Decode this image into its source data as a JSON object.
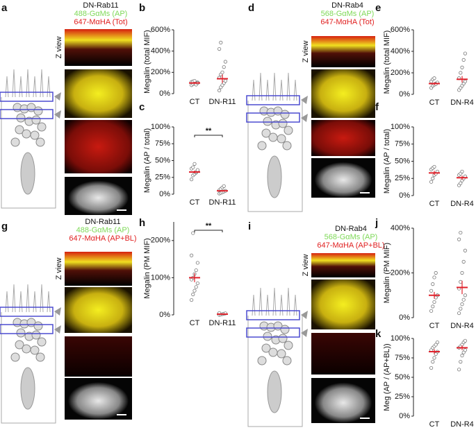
{
  "image_panels": [
    {
      "letter": "a",
      "title": "DN-Rab11",
      "label1": "488-GαMs (AP)",
      "label2": "647-MαHA (Tot)",
      "zview": "Z view"
    },
    {
      "letter": "d",
      "title": "DN-Rab4",
      "label1": "568-GαMs (AP)",
      "label2": "647-MαHA (Tot)",
      "zview": "Z view"
    },
    {
      "letter": "g",
      "title": "DN-Rab11",
      "label1": "488-GαMs (AP)",
      "label2": "647-MαHA (AP+BL)",
      "zview": "Z view"
    },
    {
      "letter": "i",
      "title": "DN-Rab4",
      "label1": "568-GαMs (AP)",
      "label2": "647-MαHA (AP+BL)",
      "zview": "Z view"
    }
  ],
  "chart_data": [
    {
      "type": "strip",
      "letter": "b",
      "ylabel": "Megalin (total MIF)",
      "categories": [
        "CT",
        "DN-R11"
      ],
      "points": [
        [
          80,
          90,
          95,
          100,
          105,
          110,
          115,
          120,
          85,
          100
        ],
        [
          30,
          60,
          80,
          100,
          120,
          150,
          180,
          200,
          250,
          300,
          420,
          480
        ]
      ],
      "means": [
        100,
        140
      ],
      "errors": [
        10,
        40
      ],
      "point_color": "#777",
      "mean_color": "#e0202a",
      "ylim": [
        0,
        600
      ],
      "yticks": [
        {
          "value": 0,
          "label": "0%"
        },
        {
          "value": 200,
          "label": "200%"
        },
        {
          "value": 400,
          "label": "400%"
        },
        {
          "value": 600,
          "label": "600%"
        }
      ]
    },
    {
      "type": "strip",
      "letter": "c",
      "ylabel": "Megalin (AP / total)",
      "categories": [
        "CT",
        "DN-R11"
      ],
      "annotation": "**",
      "points": [
        [
          22,
          28,
          30,
          32,
          35,
          38,
          40,
          45,
          33,
          36
        ],
        [
          1,
          2,
          3,
          4,
          5,
          6,
          8,
          10,
          12
        ]
      ],
      "means": [
        33,
        5
      ],
      "errors": [
        2,
        1
      ],
      "point_color": "#777",
      "mean_color": "#e0202a",
      "ylim": [
        0,
        100
      ],
      "yticks": [
        {
          "value": 0,
          "label": "0%"
        },
        {
          "value": 25,
          "label": "25%"
        },
        {
          "value": 50,
          "label": "50%"
        },
        {
          "value": 75,
          "label": "75%"
        },
        {
          "value": 100,
          "label": "100%"
        }
      ]
    },
    {
      "type": "strip",
      "letter": "e",
      "ylabel": "Megalin (total MIF)",
      "categories": [
        "CT",
        "DN-R4"
      ],
      "points": [
        [
          60,
          80,
          90,
          100,
          110,
          120,
          140,
          150,
          95
        ],
        [
          40,
          60,
          80,
          100,
          120,
          150,
          200,
          250,
          320,
          380
        ]
      ],
      "means": [
        100,
        140
      ],
      "errors": [
        12,
        30
      ],
      "point_color": "#777",
      "mean_color": "#e0202a",
      "ylim": [
        0,
        600
      ],
      "yticks": [
        {
          "value": 0,
          "label": "0%"
        },
        {
          "value": 200,
          "label": "200%"
        },
        {
          "value": 400,
          "label": "400%"
        },
        {
          "value": 600,
          "label": "600%"
        }
      ]
    },
    {
      "type": "strip",
      "letter": "f",
      "ylabel": "Megalin (AP / total)",
      "categories": [
        "CT",
        "DN-R4"
      ],
      "points": [
        [
          20,
          25,
          30,
          32,
          35,
          38,
          40,
          42
        ],
        [
          15,
          18,
          22,
          25,
          28,
          30,
          32,
          35
        ]
      ],
      "means": [
        33,
        26
      ],
      "errors": [
        3,
        3
      ],
      "point_color": "#777",
      "mean_color": "#e0202a",
      "ylim": [
        0,
        100
      ],
      "yticks": [
        {
          "value": 0,
          "label": "0%"
        },
        {
          "value": 25,
          "label": "25%"
        },
        {
          "value": 50,
          "label": "50%"
        },
        {
          "value": 75,
          "label": "75%"
        },
        {
          "value": 100,
          "label": "100%"
        }
      ]
    },
    {
      "type": "strip",
      "letter": "h",
      "ylabel": "Megalin (PM MIF)",
      "categories": [
        "CT",
        "DN-R11"
      ],
      "annotation": "**",
      "points": [
        [
          40,
          55,
          65,
          75,
          85,
          95,
          100,
          110,
          120,
          140,
          160,
          220
        ],
        [
          0,
          1,
          2,
          3,
          4,
          5
        ]
      ],
      "means": [
        100,
        2
      ],
      "errors": [
        12,
        1
      ],
      "point_color": "#777",
      "mean_color": "#e0202a",
      "ylim": [
        0,
        250
      ],
      "yticks": [
        {
          "value": 0,
          "label": "0%"
        },
        {
          "value": 100,
          "label": "100%"
        },
        {
          "value": 200,
          "label": "200%"
        }
      ]
    },
    {
      "type": "strip",
      "letter": "j",
      "ylabel": "Megalin (PM MIF)",
      "categories": [
        "CT",
        "DN-R4"
      ],
      "points": [
        [
          30,
          50,
          70,
          90,
          100,
          120,
          150,
          180,
          200
        ],
        [
          20,
          40,
          60,
          80,
          100,
          130,
          160,
          200,
          250,
          300,
          350,
          380
        ]
      ],
      "means": [
        100,
        135
      ],
      "errors": [
        15,
        30
      ],
      "point_color": "#777",
      "mean_color": "#e0202a",
      "ylim": [
        0,
        400
      ],
      "yticks": [
        {
          "value": 0,
          "label": "0%"
        },
        {
          "value": 200,
          "label": "200%"
        },
        {
          "value": 400,
          "label": "400%"
        }
      ]
    },
    {
      "type": "strip",
      "letter": "k",
      "ylabel": "Meg (AP / (AP+BL))",
      "categories": [
        "CT",
        "DN-R4"
      ],
      "points": [
        [
          62,
          70,
          75,
          80,
          83,
          85,
          88,
          90,
          92,
          95
        ],
        [
          60,
          70,
          78,
          82,
          85,
          88,
          90,
          92,
          95,
          97
        ]
      ],
      "means": [
        83,
        88
      ],
      "errors": [
        3,
        3
      ],
      "point_color": "#777",
      "mean_color": "#e0202a",
      "ylim": [
        0,
        100
      ],
      "yticks": [
        {
          "value": 0,
          "label": "0%"
        },
        {
          "value": 25,
          "label": "25%"
        },
        {
          "value": 50,
          "label": "50%"
        },
        {
          "value": 75,
          "label": "75%"
        },
        {
          "value": 100,
          "label": "100%"
        }
      ]
    }
  ]
}
